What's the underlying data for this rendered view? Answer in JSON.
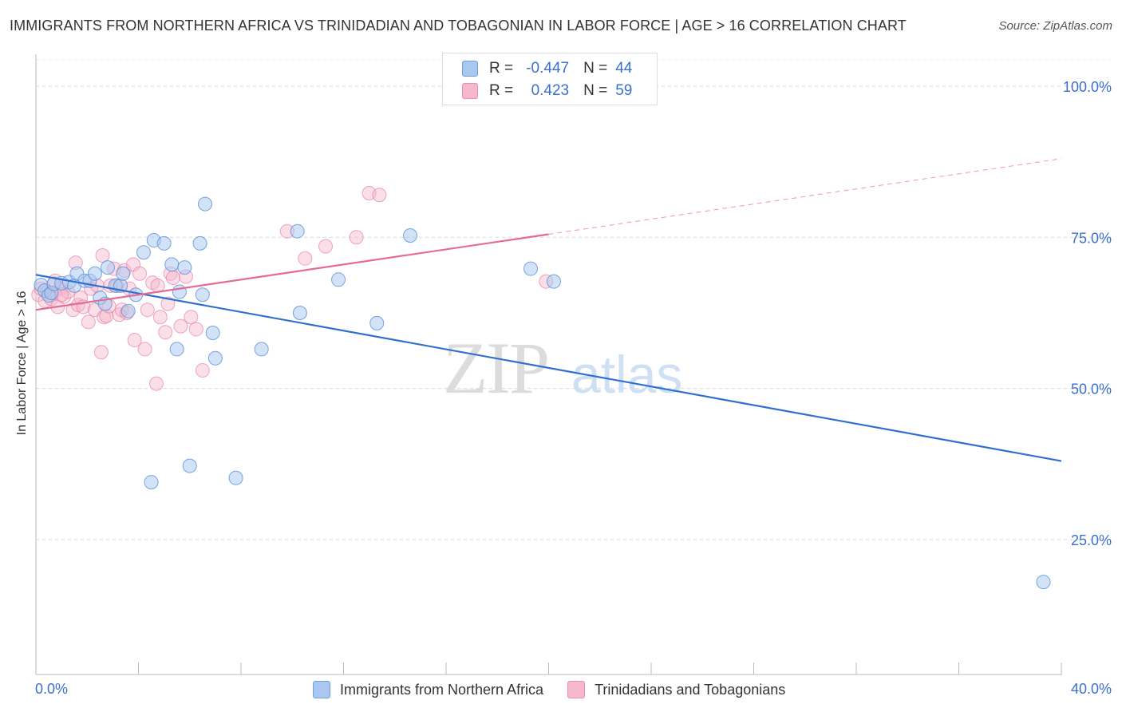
{
  "title": "IMMIGRANTS FROM NORTHERN AFRICA VS TRINIDADIAN AND TOBAGONIAN IN LABOR FORCE | AGE > 16 CORRELATION CHART",
  "source": "Source: ZipAtlas.com",
  "watermark": {
    "zip": "ZIP",
    "atlas": "atlas"
  },
  "legend": {
    "rows": [
      {
        "r_label": "R =",
        "r_value": "-0.447",
        "n_label": "N =",
        "n_value": "44",
        "color": "#a8c8f0"
      },
      {
        "r_label": "R =",
        "r_value": "0.423",
        "n_label": "N =",
        "n_value": "59",
        "color": "#f5b8cc"
      }
    ]
  },
  "bottom_legend": [
    {
      "label": "Immigrants from Northern Africa",
      "color": "#a8c8f0"
    },
    {
      "label": "Trinidadians and Tobagonians",
      "color": "#f5b8cc"
    }
  ],
  "chart_data": {
    "type": "scatter",
    "ylabel": "In Labor Force | Age > 16",
    "x_tick_labels": [
      "0.0%",
      "40.0%"
    ],
    "y_tick_labels": [
      "100.0%",
      "75.0%",
      "50.0%",
      "25.0%"
    ],
    "y_ticks": [
      100,
      75,
      50,
      25
    ],
    "xlim": [
      0,
      40
    ],
    "ylim": [
      2.7,
      105
    ],
    "grid": true,
    "colors": {
      "blue_point": "#a8c8f0",
      "blue_stroke": "#5b8fd8",
      "blue_line": "#2f6fd0",
      "pink_point": "#f5b8cc",
      "pink_stroke": "#e882a4",
      "pink_line": "#e56a95",
      "tick_label": "#3a6fd0"
    },
    "series": [
      {
        "name": "Immigrants from Northern Africa",
        "color": "#a8c8f0",
        "points": [
          [
            0.2,
            67.1
          ],
          [
            0.35,
            66.2
          ],
          [
            0.5,
            65.4
          ],
          [
            0.6,
            65.8
          ],
          [
            0.7,
            67.3
          ],
          [
            1.0,
            67.4
          ],
          [
            1.3,
            67.6
          ],
          [
            1.5,
            67.0
          ],
          [
            1.6,
            69.0
          ],
          [
            1.9,
            67.8
          ],
          [
            2.1,
            67.8
          ],
          [
            2.3,
            69.0
          ],
          [
            2.5,
            65.0
          ],
          [
            2.7,
            64.0
          ],
          [
            2.8,
            70.0
          ],
          [
            3.1,
            67.0
          ],
          [
            3.3,
            67.0
          ],
          [
            3.4,
            69.0
          ],
          [
            3.6,
            62.8
          ],
          [
            3.9,
            65.5
          ],
          [
            4.2,
            72.5
          ],
          [
            4.6,
            74.5
          ],
          [
            5.0,
            74.0
          ],
          [
            5.3,
            70.5
          ],
          [
            5.5,
            56.5
          ],
          [
            5.6,
            66.0
          ],
          [
            5.8,
            70.0
          ],
          [
            6.4,
            74.0
          ],
          [
            6.5,
            65.5
          ],
          [
            6.6,
            80.5
          ],
          [
            6.9,
            59.2
          ],
          [
            7.0,
            55.0
          ],
          [
            8.8,
            56.5
          ],
          [
            10.2,
            76.0
          ],
          [
            10.3,
            62.5
          ],
          [
            11.8,
            68.0
          ],
          [
            13.3,
            60.8
          ],
          [
            14.6,
            75.3
          ],
          [
            19.3,
            69.8
          ],
          [
            20.2,
            67.7
          ],
          [
            39.3,
            18.0
          ],
          [
            4.5,
            34.5
          ],
          [
            6.0,
            37.2
          ],
          [
            7.8,
            35.2
          ]
        ],
        "trend": {
          "x": [
            0,
            40
          ],
          "y": [
            68.8,
            38.0
          ]
        }
      },
      {
        "name": "Trinidadians and Tobagonians",
        "color": "#f5b8cc",
        "points": [
          [
            0.1,
            65.5
          ],
          [
            0.2,
            66.5
          ],
          [
            0.35,
            64.5
          ],
          [
            0.45,
            66.0
          ],
          [
            0.6,
            64.8
          ],
          [
            0.7,
            65.8
          ],
          [
            0.75,
            67.8
          ],
          [
            0.85,
            63.5
          ],
          [
            0.95,
            66.5
          ],
          [
            1.1,
            65.2
          ],
          [
            1.25,
            66.0
          ],
          [
            1.45,
            63.0
          ],
          [
            1.55,
            70.8
          ],
          [
            1.65,
            63.8
          ],
          [
            1.75,
            65.0
          ],
          [
            1.85,
            63.5
          ],
          [
            2.05,
            61.0
          ],
          [
            2.15,
            66.5
          ],
          [
            2.3,
            63.0
          ],
          [
            2.4,
            67.0
          ],
          [
            2.55,
            56.0
          ],
          [
            2.6,
            72.0
          ],
          [
            2.65,
            61.8
          ],
          [
            2.75,
            62.0
          ],
          [
            2.85,
            63.6
          ],
          [
            3.05,
            69.8
          ],
          [
            3.15,
            67.0
          ],
          [
            3.25,
            62.2
          ],
          [
            3.35,
            63.0
          ],
          [
            3.45,
            69.5
          ],
          [
            3.55,
            62.5
          ],
          [
            3.65,
            66.5
          ],
          [
            3.8,
            70.5
          ],
          [
            3.85,
            58.0
          ],
          [
            4.05,
            69.0
          ],
          [
            4.25,
            56.5
          ],
          [
            4.35,
            63.0
          ],
          [
            4.55,
            67.5
          ],
          [
            4.75,
            67.0
          ],
          [
            4.85,
            61.8
          ],
          [
            5.05,
            59.3
          ],
          [
            5.15,
            64.0
          ],
          [
            5.25,
            69.0
          ],
          [
            5.35,
            68.3
          ],
          [
            5.65,
            60.3
          ],
          [
            5.85,
            68.5
          ],
          [
            6.05,
            61.8
          ],
          [
            6.25,
            59.8
          ],
          [
            6.5,
            53.0
          ],
          [
            4.7,
            50.8
          ],
          [
            9.8,
            76.0
          ],
          [
            10.5,
            71.5
          ],
          [
            11.3,
            73.5
          ],
          [
            12.5,
            75.0
          ],
          [
            13.0,
            82.3
          ],
          [
            13.4,
            82.0
          ],
          [
            19.9,
            67.7
          ],
          [
            1.0,
            65.5
          ],
          [
            2.9,
            67.0
          ]
        ],
        "trend": {
          "x": [
            0,
            20
          ],
          "y": [
            63.0,
            75.5
          ]
        },
        "trend_dashed": {
          "x": [
            20,
            40
          ],
          "y": [
            75.5,
            88.0
          ]
        }
      }
    ]
  }
}
